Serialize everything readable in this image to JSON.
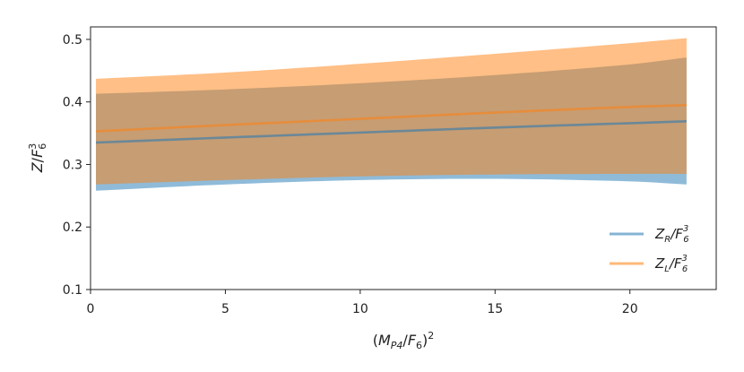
{
  "chart_data": {
    "type": "area",
    "xlabel": "(M_P4/F_6)^2",
    "ylabel": "Z/F_6^3",
    "xlim": [
      0,
      23.2
    ],
    "ylim": [
      0.1,
      0.52
    ],
    "x_ticks": [
      0,
      5,
      10,
      15,
      20
    ],
    "y_ticks": [
      0.1,
      0.2,
      0.3,
      0.4,
      0.5
    ],
    "x_tick_labels": [
      "0",
      "5",
      "10",
      "15",
      "20"
    ],
    "y_tick_labels": [
      "0.1",
      "0.2",
      "0.3",
      "0.4",
      "0.5"
    ],
    "grid": false,
    "legend_position": "lower-right",
    "series": [
      {
        "name": "Z_R/F_6^3",
        "color": "#1f77b4",
        "x": [
          0.2,
          5,
          10,
          15,
          20,
          22.1
        ],
        "y": [
          0.335,
          0.343,
          0.351,
          0.359,
          0.366,
          0.369
        ],
        "lower": [
          0.258,
          0.268,
          0.275,
          0.277,
          0.273,
          0.268
        ],
        "upper": [
          0.413,
          0.42,
          0.43,
          0.443,
          0.46,
          0.471
        ]
      },
      {
        "name": "Z_L/F_6^3",
        "color": "#ff7f0e",
        "x": [
          0.2,
          5,
          10,
          15,
          20,
          22.1
        ],
        "y": [
          0.353,
          0.363,
          0.373,
          0.383,
          0.392,
          0.395
        ],
        "lower": [
          0.268,
          0.275,
          0.281,
          0.284,
          0.285,
          0.285
        ],
        "upper": [
          0.437,
          0.447,
          0.461,
          0.477,
          0.494,
          0.502
        ]
      }
    ],
    "legend": [
      {
        "main": "Z",
        "sub": "R",
        "div": "/F",
        "sub2": "6",
        "sup": "3"
      },
      {
        "main": "Z",
        "sub": "L",
        "div": "/F",
        "sub2": "6",
        "sup": "3"
      }
    ]
  }
}
